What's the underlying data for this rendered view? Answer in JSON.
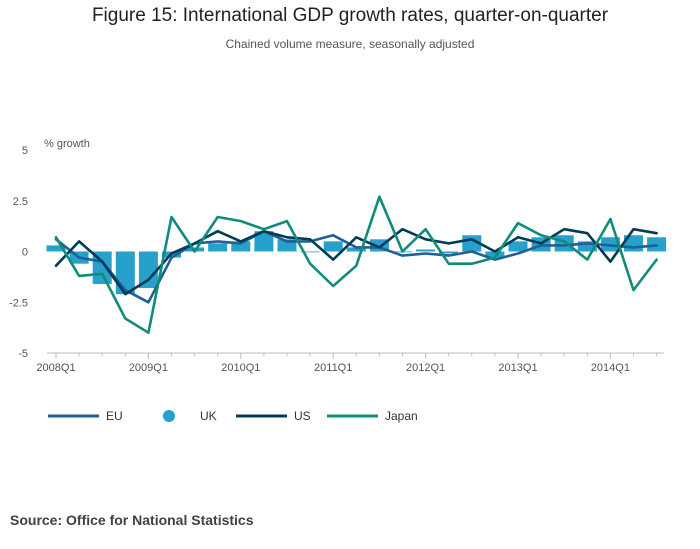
{
  "chart_data": {
    "type": "line",
    "title": "Figure 15: International GDP growth rates, quarter-on-quarter",
    "subtitle": "Chained volume measure, seasonally adjusted",
    "ylabel": "% growth",
    "xlabel": "",
    "ylim": [
      -5,
      5
    ],
    "yticks": [
      5,
      2.5,
      0,
      -2.5,
      -5
    ],
    "ytick_labels": [
      "5",
      "2.5",
      "0",
      "-2.5",
      "-5"
    ],
    "categories": [
      "2008Q1",
      "2008Q2",
      "2008Q3",
      "2008Q4",
      "2009Q1",
      "2009Q2",
      "2009Q3",
      "2009Q4",
      "2010Q1",
      "2010Q2",
      "2010Q3",
      "2010Q4",
      "2011Q1",
      "2011Q2",
      "2011Q3",
      "2011Q4",
      "2012Q1",
      "2012Q2",
      "2012Q3",
      "2012Q4",
      "2013Q1",
      "2013Q2",
      "2013Q3",
      "2013Q4",
      "2014Q1",
      "2014Q2",
      "2014Q3"
    ],
    "xtick_labels": [
      "2008Q1",
      "2009Q1",
      "2010Q1",
      "2011Q1",
      "2012Q1",
      "2013Q1",
      "2014Q1"
    ],
    "series": [
      {
        "name": "EU",
        "type": "line",
        "color": "#206095",
        "values": [
          0.6,
          -0.3,
          -0.5,
          -1.9,
          -2.5,
          -0.3,
          0.4,
          0.5,
          0.4,
          1.0,
          0.5,
          0.5,
          0.8,
          0.2,
          0.2,
          -0.2,
          -0.1,
          -0.2,
          0.0,
          -0.4,
          -0.1,
          0.3,
          0.3,
          0.4,
          0.3,
          0.2,
          0.3
        ]
      },
      {
        "name": "UK",
        "type": "bar",
        "color": "#27a0cc",
        "values": [
          0.3,
          -0.6,
          -1.6,
          -2.1,
          -1.8,
          -0.3,
          0.2,
          0.4,
          0.5,
          1.0,
          0.6,
          0.0,
          0.5,
          0.2,
          0.6,
          0.0,
          0.1,
          -0.1,
          0.8,
          -0.3,
          0.5,
          0.7,
          0.8,
          0.5,
          0.7,
          0.8,
          0.7
        ]
      },
      {
        "name": "US",
        "type": "line",
        "color": "#003c57",
        "values": [
          -0.7,
          0.5,
          -0.5,
          -2.1,
          -1.4,
          -0.1,
          0.4,
          1.0,
          0.5,
          1.0,
          0.7,
          0.6,
          -0.4,
          0.7,
          0.2,
          1.1,
          0.6,
          0.4,
          0.6,
          0.0,
          0.7,
          0.4,
          1.1,
          0.9,
          -0.5,
          1.1,
          0.9
        ]
      },
      {
        "name": "Japan",
        "type": "line",
        "color": "#118c7b",
        "values": [
          0.7,
          -1.2,
          -1.1,
          -3.3,
          -4.0,
          1.7,
          0.0,
          1.7,
          1.5,
          1.1,
          1.5,
          -0.6,
          -1.7,
          -0.7,
          2.7,
          0.0,
          1.1,
          -0.6,
          -0.6,
          -0.3,
          1.4,
          0.8,
          0.5,
          -0.4,
          1.6,
          -1.9,
          -0.4
        ]
      }
    ],
    "legend": {
      "position": "bottom-left",
      "order": [
        "EU",
        "UK",
        "US",
        "Japan"
      ]
    },
    "grid": false
  },
  "source": "Source: Office for National Statistics"
}
